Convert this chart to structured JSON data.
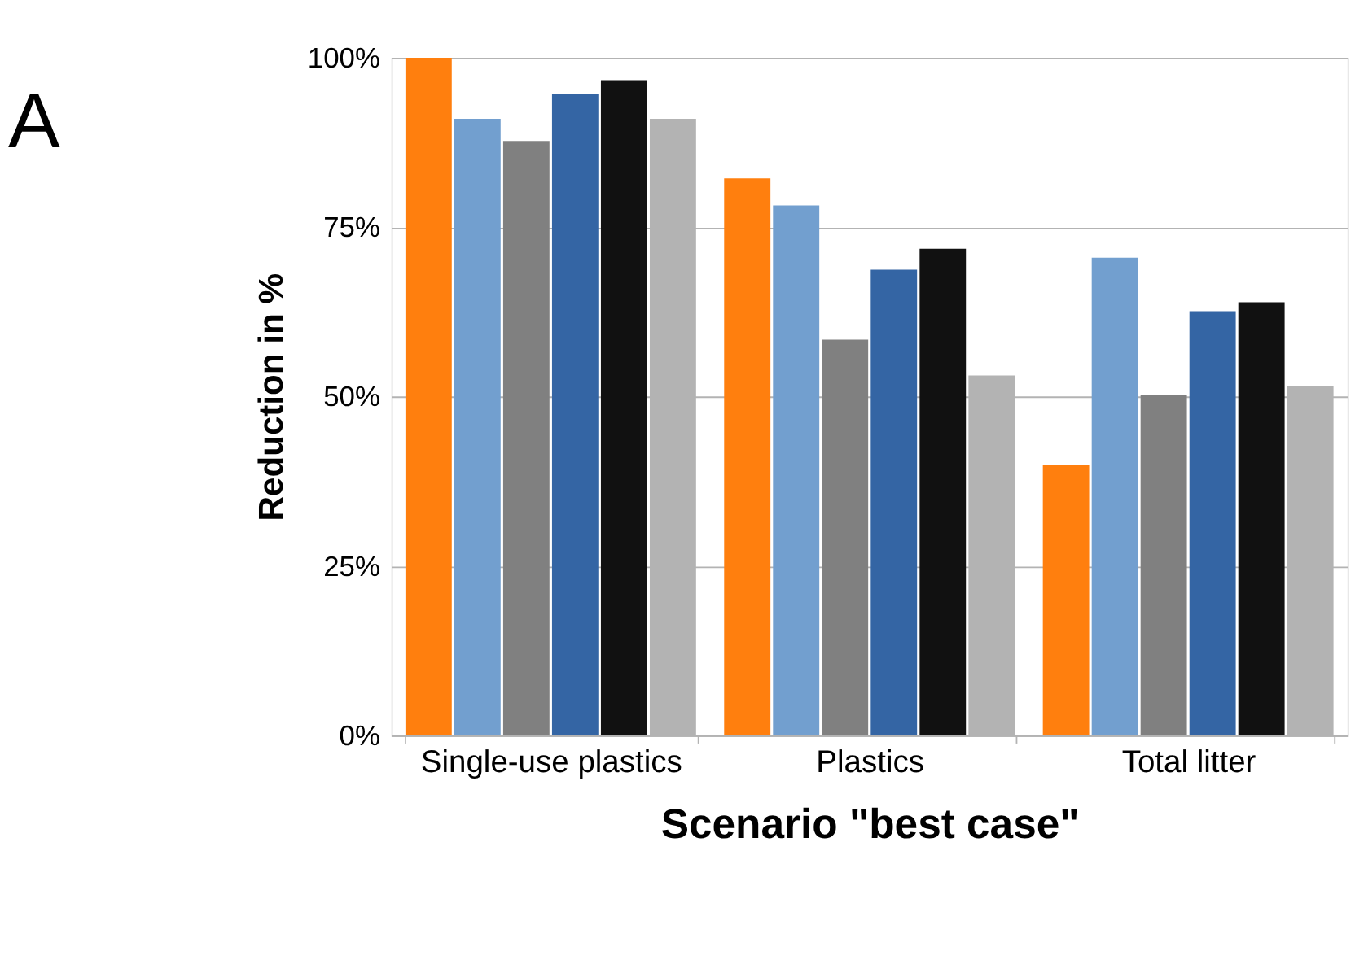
{
  "chart_data": {
    "type": "bar",
    "title": "A",
    "xlabel": "Scenario \"best case\"",
    "ylabel": "Reduction in %",
    "categories": [
      "Single-use plastics",
      "Plastics",
      "Total litter"
    ],
    "series": [
      {
        "color": "#ff7f0e",
        "values": [
          100,
          82.2,
          39.9
        ]
      },
      {
        "color": "#729fcf",
        "values": [
          91,
          78.2,
          70.5
        ]
      },
      {
        "color": "#808080",
        "values": [
          87.7,
          58.4,
          50.2
        ]
      },
      {
        "color": "#3465a4",
        "values": [
          94.7,
          68.7,
          62.6
        ]
      },
      {
        "color": "#111111",
        "values": [
          96.7,
          71.8,
          63.9
        ]
      },
      {
        "color": "#b3b3b3",
        "values": [
          91,
          53.1,
          51.5
        ]
      }
    ],
    "ylim": [
      0,
      100
    ],
    "yticks": [
      {
        "value": 0,
        "label": "0%"
      },
      {
        "value": 25,
        "label": "25%"
      },
      {
        "value": 50,
        "label": "50%"
      },
      {
        "value": 75,
        "label": "75%"
      },
      {
        "value": 100,
        "label": "100%"
      }
    ],
    "grid": "y",
    "legend": false
  }
}
